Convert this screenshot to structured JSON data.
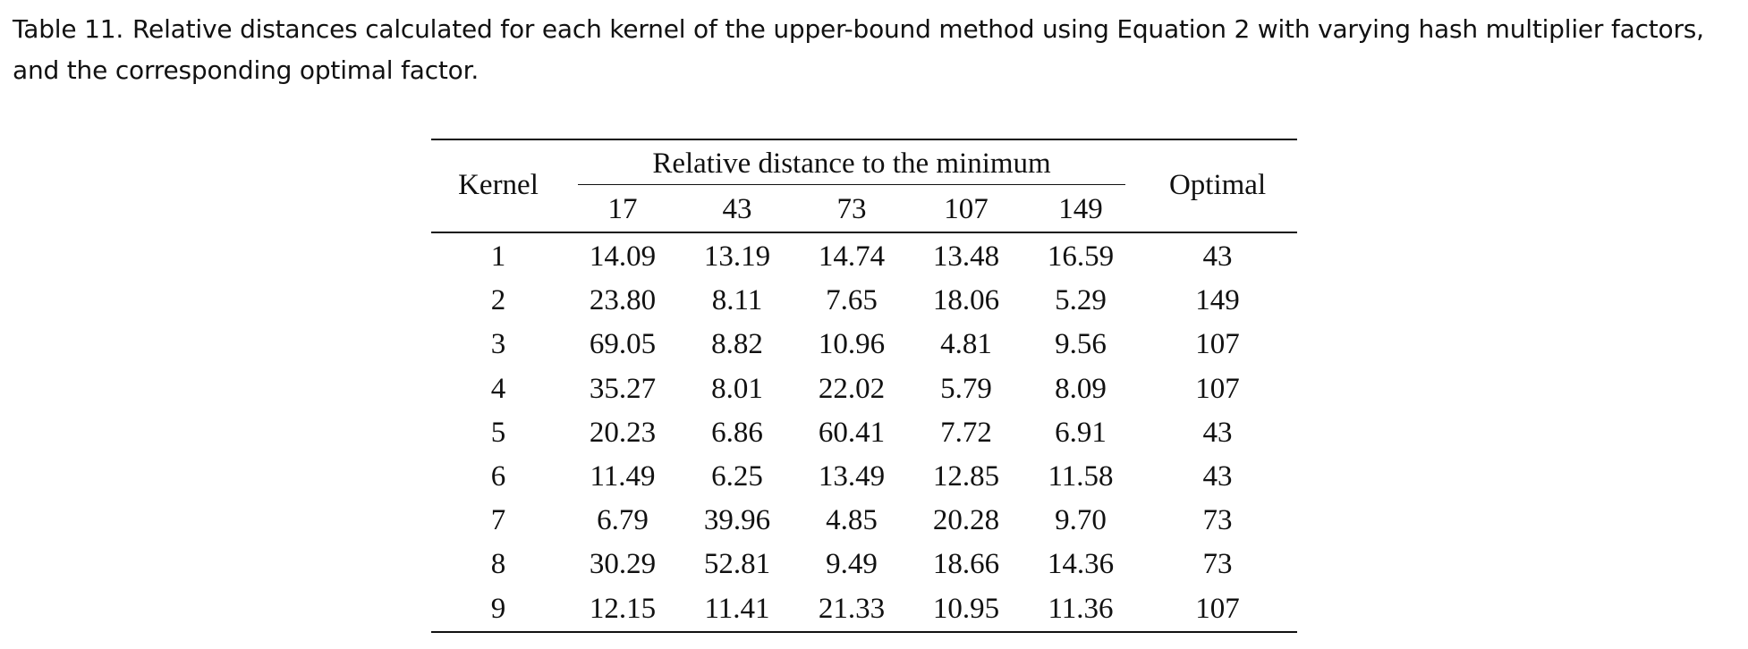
{
  "caption": {
    "label": "Table 11.",
    "text": "Relative distances calculated for each kernel of the upper-bound method using Equation 2 with varying hash multiplier factors, and the corresponding optimal factor."
  },
  "table": {
    "kernel_header": "Kernel",
    "group_header": "Relative distance to the minimum",
    "factor_headers": [
      "17",
      "43",
      "73",
      "107",
      "149"
    ],
    "optimal_header": "Optimal",
    "rows": [
      {
        "kernel": "1",
        "values": [
          "14.09",
          "13.19",
          "14.74",
          "13.48",
          "16.59"
        ],
        "optimal": "43"
      },
      {
        "kernel": "2",
        "values": [
          "23.80",
          "8.11",
          "7.65",
          "18.06",
          "5.29"
        ],
        "optimal": "149"
      },
      {
        "kernel": "3",
        "values": [
          "69.05",
          "8.82",
          "10.96",
          "4.81",
          "9.56"
        ],
        "optimal": "107"
      },
      {
        "kernel": "4",
        "values": [
          "35.27",
          "8.01",
          "22.02",
          "5.79",
          "8.09"
        ],
        "optimal": "107"
      },
      {
        "kernel": "5",
        "values": [
          "20.23",
          "6.86",
          "60.41",
          "7.72",
          "6.91"
        ],
        "optimal": "43"
      },
      {
        "kernel": "6",
        "values": [
          "11.49",
          "6.25",
          "13.49",
          "12.85",
          "11.58"
        ],
        "optimal": "43"
      },
      {
        "kernel": "7",
        "values": [
          "6.79",
          "39.96",
          "4.85",
          "20.28",
          "9.70"
        ],
        "optimal": "73"
      },
      {
        "kernel": "8",
        "values": [
          "30.29",
          "52.81",
          "9.49",
          "18.66",
          "14.36"
        ],
        "optimal": "73"
      },
      {
        "kernel": "9",
        "values": [
          "12.15",
          "11.41",
          "21.33",
          "10.95",
          "11.36"
        ],
        "optimal": "107"
      }
    ]
  }
}
